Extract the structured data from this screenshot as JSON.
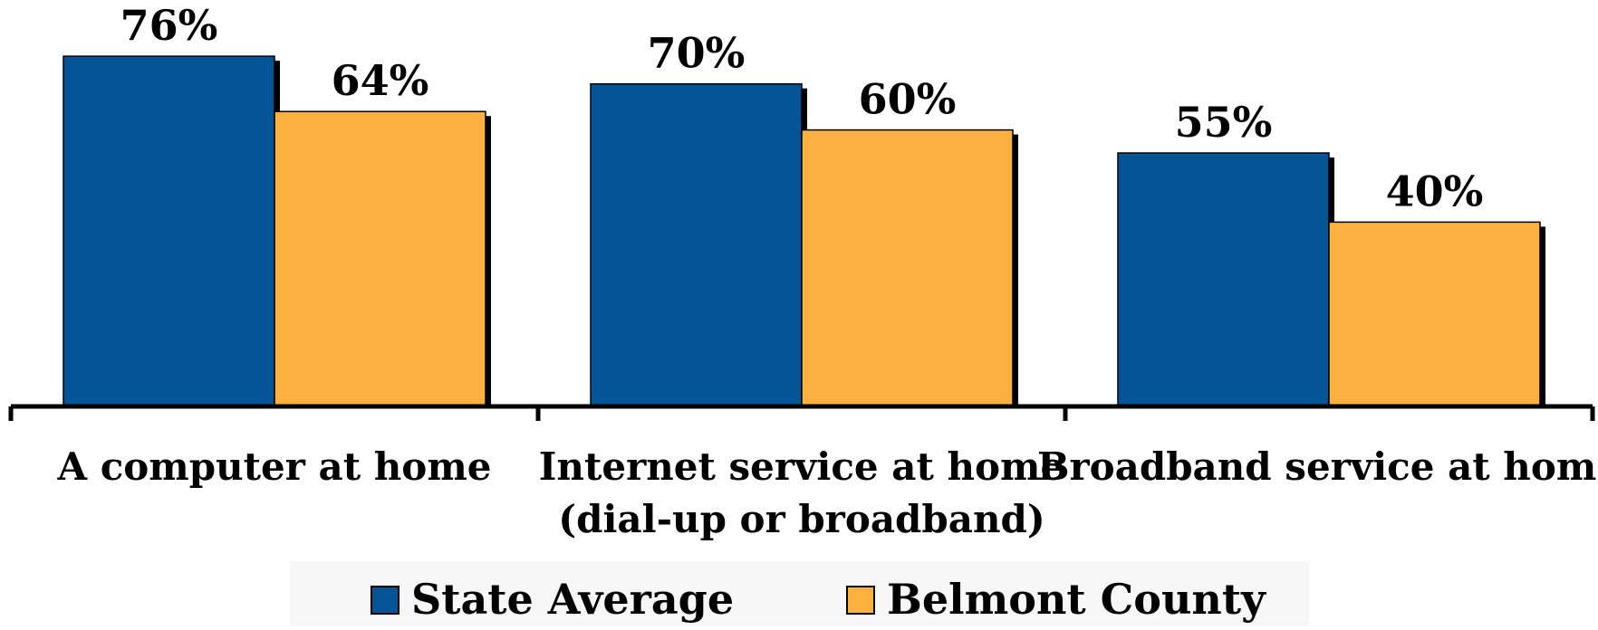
{
  "chart_data": {
    "type": "bar",
    "title": "",
    "xlabel": "",
    "ylabel": "",
    "ylim": [
      0,
      85
    ],
    "grid": false,
    "legend_position": "bottom",
    "categories": [
      [
        "A computer at home"
      ],
      [
        "Internet service at home",
        "(dial-up or broadband)"
      ],
      [
        "Broadband service at home"
      ]
    ],
    "series": [
      {
        "name": "State Average",
        "color": "#035597",
        "values": [
          76,
          70,
          55
        ],
        "labels": [
          "76%",
          "70%",
          "55%"
        ]
      },
      {
        "name": "Belmont County",
        "color": "#fbb040",
        "values": [
          64,
          60,
          40
        ],
        "labels": [
          "64%",
          "60%",
          "40%"
        ]
      }
    ]
  }
}
